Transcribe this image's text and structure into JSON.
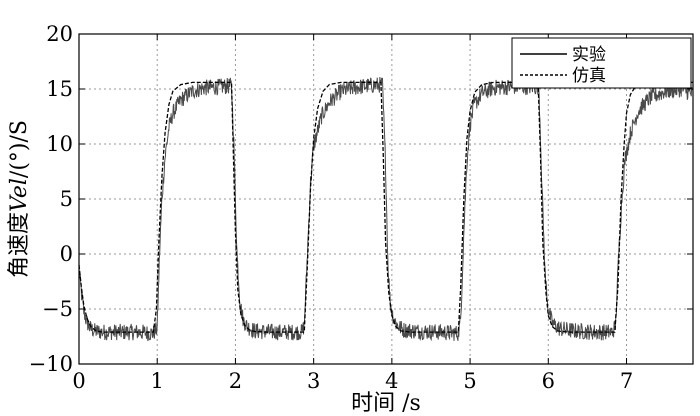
{
  "chart_data": {
    "type": "line",
    "title": "",
    "xlabel": "时间 /s",
    "ylabel_prefix": "角速度",
    "ylabel_var": "Vel",
    "ylabel_suffix": "/(°)/S",
    "xlim": [
      0,
      7.85
    ],
    "ylim": [
      -10,
      20
    ],
    "xticks": [
      0,
      1,
      2,
      3,
      4,
      5,
      6,
      7
    ],
    "yticks": [
      -10,
      -5,
      0,
      5,
      10,
      15,
      20
    ],
    "grid": true,
    "legend_position": "top-right",
    "series": [
      {
        "name": "实验",
        "style": "solid",
        "color": "#4a4a4a",
        "noise_amplitude": 0.75,
        "x": [
          0,
          0.03,
          0.06,
          0.1,
          0.15,
          0.2,
          0.3,
          0.5,
          0.75,
          0.95,
          1.0,
          1.03,
          1.06,
          1.1,
          1.15,
          1.2,
          1.3,
          1.45,
          1.6,
          1.8,
          1.95,
          1.98,
          2.02,
          2.06,
          2.1,
          2.15,
          2.25,
          2.5,
          2.75,
          2.85,
          2.88,
          2.92,
          2.96,
          3.0,
          3.1,
          3.2,
          3.35,
          3.5,
          3.7,
          3.88,
          3.92,
          3.95,
          3.98,
          4.02,
          4.07,
          4.15,
          4.3,
          4.6,
          4.85,
          4.88,
          4.92,
          4.96,
          5.0,
          5.05,
          5.15,
          5.3,
          5.5,
          5.75,
          5.88,
          5.92,
          5.96,
          6.0,
          6.05,
          6.15,
          6.35,
          6.6,
          6.82,
          6.86,
          6.9,
          6.94,
          6.98,
          7.05,
          7.15,
          7.3,
          7.5,
          7.7,
          7.85
        ],
        "y": [
          -1.5,
          -3.5,
          -5.2,
          -6.2,
          -6.8,
          -7.0,
          -7.1,
          -7.1,
          -7.1,
          -7.2,
          -6.8,
          0,
          5,
          8.8,
          11.5,
          12.8,
          14,
          14.8,
          15.1,
          15.2,
          15.3,
          10,
          0,
          -4.5,
          -6.0,
          -6.6,
          -7.0,
          -7.1,
          -7.1,
          -7.1,
          -6.5,
          0,
          6.5,
          9.8,
          12.5,
          13.8,
          14.8,
          15.1,
          15.3,
          15.4,
          8,
          -1,
          -4.5,
          -5.8,
          -6.5,
          -6.9,
          -7.0,
          -7.1,
          -7.2,
          -6.0,
          2,
          8.5,
          11.8,
          13.5,
          14.6,
          15.1,
          15.2,
          15.2,
          15.2,
          6,
          -2,
          -5.0,
          -6.3,
          -6.8,
          -7.0,
          -7.1,
          -7.1,
          -6.5,
          0,
          5,
          8.5,
          11,
          13,
          14.2,
          14.8,
          15.0,
          14.5
        ]
      },
      {
        "name": "仿真",
        "style": "dashed",
        "color": "#000000",
        "noise_amplitude": 0,
        "x": [
          0,
          0.03,
          0.06,
          0.1,
          0.15,
          0.22,
          0.3,
          0.5,
          0.95,
          0.99,
          1.02,
          1.06,
          1.1,
          1.15,
          1.2,
          1.3,
          1.45,
          1.6,
          1.95,
          1.97,
          2.0,
          2.03,
          2.07,
          2.12,
          2.18,
          2.25,
          2.4,
          2.88,
          2.92,
          2.96,
          3.0,
          3.05,
          3.12,
          3.2,
          3.35,
          3.5,
          3.86,
          3.89,
          3.92,
          3.96,
          4.0,
          4.05,
          4.12,
          4.25,
          4.85,
          4.88,
          4.92,
          4.96,
          5.0,
          5.06,
          5.15,
          5.3,
          5.5,
          5.87,
          5.9,
          5.93,
          5.97,
          6.0,
          6.05,
          6.12,
          6.25,
          6.85,
          6.89,
          6.93,
          6.97,
          7.0,
          7.05,
          7.12,
          7.2,
          7.35,
          7.5,
          7.85
        ],
        "y": [
          -1.0,
          -3.0,
          -4.6,
          -5.8,
          -6.6,
          -7.0,
          -7.1,
          -7.1,
          -7.1,
          -5.0,
          1,
          7,
          11,
          13.6,
          14.8,
          15.4,
          15.6,
          15.6,
          15.6,
          10,
          2,
          -3.2,
          -5.5,
          -6.5,
          -6.9,
          -7.05,
          -7.1,
          -7.1,
          -1,
          6,
          10.5,
          13.2,
          14.8,
          15.4,
          15.6,
          15.6,
          15.6,
          9,
          1,
          -3.5,
          -5.6,
          -6.6,
          -7.0,
          -7.1,
          -7.1,
          -3,
          5,
          10.5,
          13.0,
          14.7,
          15.4,
          15.6,
          15.6,
          15.6,
          9,
          1,
          -3.5,
          -5.6,
          -6.6,
          -7.0,
          -7.1,
          -7.1,
          -3,
          5,
          10,
          12.8,
          14.5,
          15.3,
          15.5,
          15.6,
          15.6,
          15.6
        ]
      }
    ]
  }
}
